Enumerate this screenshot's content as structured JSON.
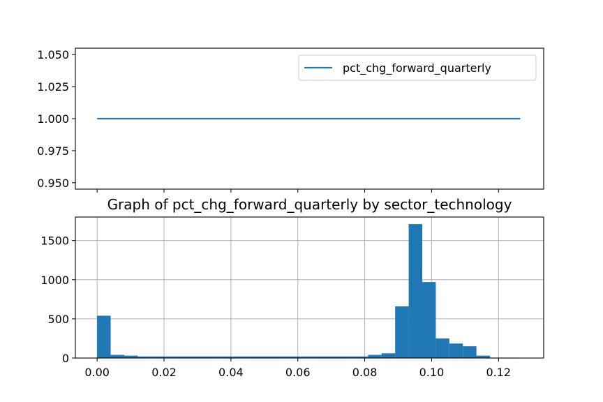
{
  "chart_data": [
    {
      "type": "line",
      "title": "",
      "xlabel": "",
      "ylabel": "",
      "ylim": [
        0.945,
        1.055
      ],
      "xlim": [
        -0.0065,
        0.1335
      ],
      "grid": false,
      "legend_position": "top-right",
      "y_ticks": [
        0.95,
        0.975,
        1.0,
        1.025,
        1.05
      ],
      "y_tick_labels": [
        "0.950",
        "0.975",
        "1.000",
        "1.025",
        "1.050"
      ],
      "x_ticks": [
        0.0,
        0.02,
        0.04,
        0.06,
        0.08,
        0.1,
        0.12
      ],
      "series": [
        {
          "name": "pct_chg_forward_quarterly",
          "color": "#1f77b4",
          "x": [
            0.0,
            0.1265
          ],
          "y": [
            1.0,
            1.0
          ]
        }
      ]
    },
    {
      "type": "bar",
      "title": "Graph of pct_chg_forward_quarterly by sector_technology",
      "xlabel": "",
      "ylabel": "",
      "xlim": [
        -0.0065,
        0.1335
      ],
      "ylim": [
        0,
        1800
      ],
      "grid": true,
      "color": "#1f77b4",
      "x_ticks": [
        0.0,
        0.02,
        0.04,
        0.06,
        0.08,
        0.1,
        0.12
      ],
      "x_tick_labels": [
        "0.00",
        "0.02",
        "0.04",
        "0.06",
        "0.08",
        "0.10",
        "0.12"
      ],
      "y_ticks": [
        0,
        500,
        1000,
        1500
      ],
      "y_tick_labels": [
        "0",
        "500",
        "1000",
        "1500"
      ],
      "bin_start": 0.0,
      "bin_width": 0.00405,
      "values": [
        540,
        40,
        30,
        20,
        20,
        20,
        20,
        20,
        20,
        20,
        20,
        20,
        20,
        20,
        20,
        20,
        20,
        20,
        20,
        20,
        40,
        60,
        660,
        1710,
        970,
        250,
        185,
        150,
        30,
        5,
        5
      ]
    }
  ]
}
